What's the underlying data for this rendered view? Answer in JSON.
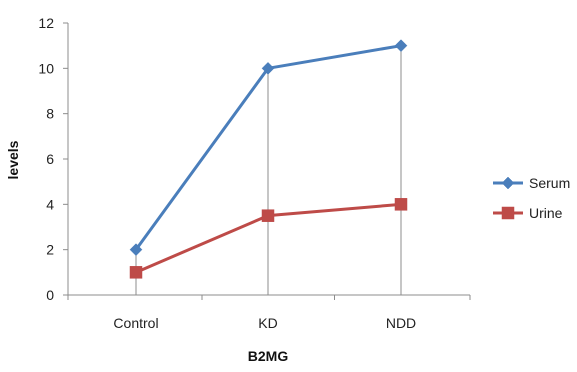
{
  "chart_data": {
    "type": "line",
    "title": "",
    "xlabel": "B2MG",
    "ylabel": "levels",
    "categories": [
      "Control",
      "KD",
      "NDD"
    ],
    "ylim": [
      0,
      12
    ],
    "yticks": [
      0,
      2,
      4,
      6,
      8,
      10,
      12
    ],
    "grid": "vertical drop lines at each category",
    "legend_position": "right",
    "series": [
      {
        "name": "Serum",
        "values": [
          2,
          10,
          11
        ],
        "color": "#4a7ebb",
        "marker": "diamond"
      },
      {
        "name": "Urine",
        "values": [
          1,
          3.5,
          4
        ],
        "color": "#be4b48",
        "marker": "square"
      }
    ]
  }
}
